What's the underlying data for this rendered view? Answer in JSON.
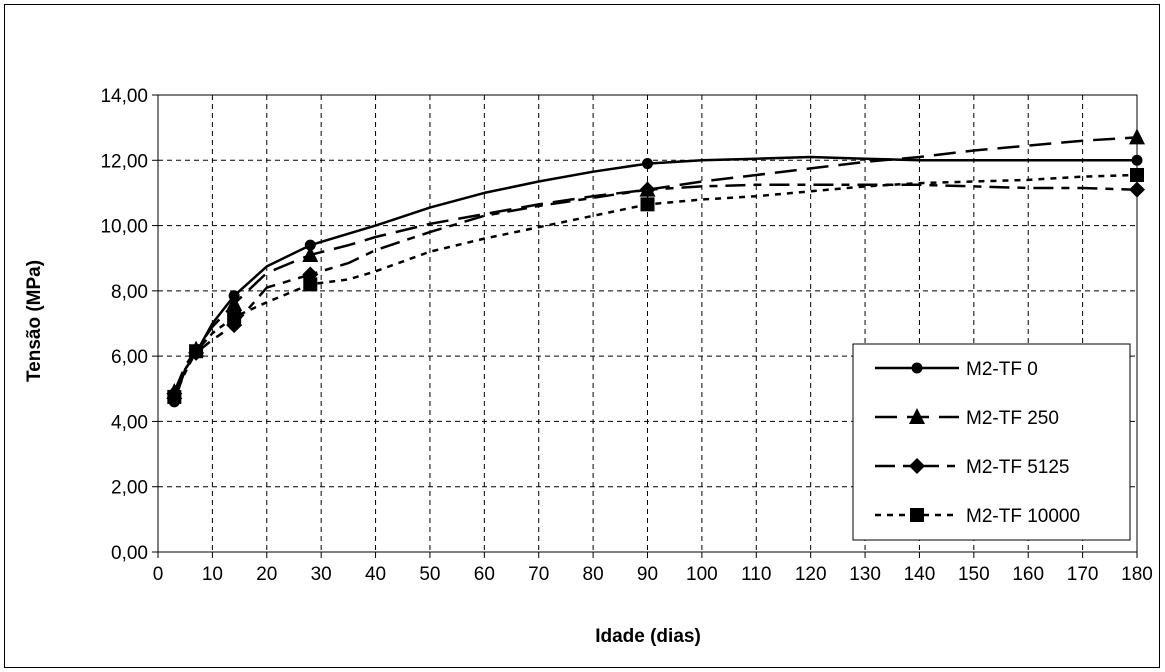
{
  "chart_data": {
    "type": "line",
    "title": "",
    "xlabel": "Idade (dias)",
    "ylabel": "Tensão (MPa)",
    "xlim": [
      0,
      180
    ],
    "ylim": [
      0,
      14
    ],
    "x_ticks": [
      "0",
      "10",
      "20",
      "30",
      "40",
      "50",
      "60",
      "70",
      "80",
      "90",
      "100",
      "110",
      "120",
      "130",
      "140",
      "150",
      "160",
      "170",
      "180"
    ],
    "y_ticks": [
      "0,00",
      "2,00",
      "4,00",
      "6,00",
      "8,00",
      "10,00",
      "12,00",
      "14,00"
    ],
    "grid": true,
    "legend_position": "right",
    "series": [
      {
        "name": "M2-TF 0",
        "marker": "circle",
        "dash": "solid",
        "points": [
          [
            3,
            4.6
          ],
          [
            7,
            6.1
          ],
          [
            14,
            7.85
          ],
          [
            28,
            9.4
          ],
          [
            90,
            11.9
          ],
          [
            180,
            12.0
          ]
        ],
        "curve": [
          [
            3,
            4.6
          ],
          [
            5,
            5.6
          ],
          [
            7,
            6.1
          ],
          [
            10,
            7.0
          ],
          [
            14,
            7.85
          ],
          [
            20,
            8.75
          ],
          [
            28,
            9.4
          ],
          [
            35,
            9.75
          ],
          [
            40,
            10.0
          ],
          [
            50,
            10.55
          ],
          [
            60,
            11.0
          ],
          [
            70,
            11.35
          ],
          [
            80,
            11.65
          ],
          [
            90,
            11.9
          ],
          [
            100,
            12.0
          ],
          [
            110,
            12.05
          ],
          [
            120,
            12.1
          ],
          [
            130,
            12.05
          ],
          [
            140,
            12.0
          ],
          [
            150,
            12.0
          ],
          [
            160,
            12.0
          ],
          [
            170,
            12.0
          ],
          [
            180,
            12.0
          ]
        ]
      },
      {
        "name": "M2-TF 250",
        "marker": "triangle",
        "dash": "long-dash",
        "points": [
          [
            3,
            4.9
          ],
          [
            7,
            6.2
          ],
          [
            14,
            7.6
          ],
          [
            28,
            9.1
          ],
          [
            90,
            11.1
          ],
          [
            180,
            12.7
          ]
        ],
        "curve": [
          [
            3,
            4.9
          ],
          [
            5,
            5.7
          ],
          [
            7,
            6.2
          ],
          [
            10,
            6.9
          ],
          [
            14,
            7.6
          ],
          [
            20,
            8.55
          ],
          [
            28,
            9.1
          ],
          [
            35,
            9.4
          ],
          [
            40,
            9.65
          ],
          [
            50,
            10.05
          ],
          [
            60,
            10.35
          ],
          [
            70,
            10.65
          ],
          [
            80,
            10.9
          ],
          [
            90,
            11.1
          ],
          [
            100,
            11.35
          ],
          [
            110,
            11.55
          ],
          [
            120,
            11.75
          ],
          [
            130,
            11.95
          ],
          [
            140,
            12.1
          ],
          [
            150,
            12.3
          ],
          [
            160,
            12.45
          ],
          [
            170,
            12.6
          ],
          [
            180,
            12.7
          ]
        ]
      },
      {
        "name": "M2-TF 5125",
        "marker": "diamond",
        "dash": "dash-dot",
        "points": [
          [
            3,
            4.85
          ],
          [
            7,
            6.1
          ],
          [
            14,
            6.95
          ],
          [
            28,
            8.5
          ],
          [
            90,
            11.1
          ],
          [
            180,
            11.1
          ]
        ],
        "curve": [
          [
            3,
            4.85
          ],
          [
            5,
            5.6
          ],
          [
            7,
            6.1
          ],
          [
            10,
            6.5
          ],
          [
            14,
            6.95
          ],
          [
            20,
            8.1
          ],
          [
            28,
            8.5
          ],
          [
            35,
            8.85
          ],
          [
            40,
            9.25
          ],
          [
            50,
            9.8
          ],
          [
            60,
            10.3
          ],
          [
            70,
            10.6
          ],
          [
            80,
            10.85
          ],
          [
            90,
            11.1
          ],
          [
            100,
            11.2
          ],
          [
            110,
            11.25
          ],
          [
            120,
            11.25
          ],
          [
            130,
            11.25
          ],
          [
            140,
            11.25
          ],
          [
            150,
            11.2
          ],
          [
            160,
            11.15
          ],
          [
            170,
            11.15
          ],
          [
            180,
            11.1
          ]
        ]
      },
      {
        "name": "M2-TF 10000",
        "marker": "square",
        "dash": "dotted",
        "points": [
          [
            3,
            4.75
          ],
          [
            7,
            6.15
          ],
          [
            14,
            7.2
          ],
          [
            28,
            8.2
          ],
          [
            90,
            10.65
          ],
          [
            180,
            11.55
          ]
        ],
        "curve": [
          [
            3,
            4.75
          ],
          [
            5,
            5.5
          ],
          [
            7,
            6.15
          ],
          [
            10,
            6.7
          ],
          [
            14,
            7.2
          ],
          [
            20,
            7.65
          ],
          [
            28,
            8.2
          ],
          [
            35,
            8.35
          ],
          [
            40,
            8.6
          ],
          [
            50,
            9.2
          ],
          [
            60,
            9.6
          ],
          [
            70,
            9.95
          ],
          [
            80,
            10.3
          ],
          [
            90,
            10.65
          ],
          [
            100,
            10.8
          ],
          [
            110,
            10.9
          ],
          [
            120,
            11.05
          ],
          [
            130,
            11.2
          ],
          [
            140,
            11.3
          ],
          [
            150,
            11.35
          ],
          [
            160,
            11.4
          ],
          [
            170,
            11.5
          ],
          [
            180,
            11.55
          ]
        ]
      }
    ]
  }
}
